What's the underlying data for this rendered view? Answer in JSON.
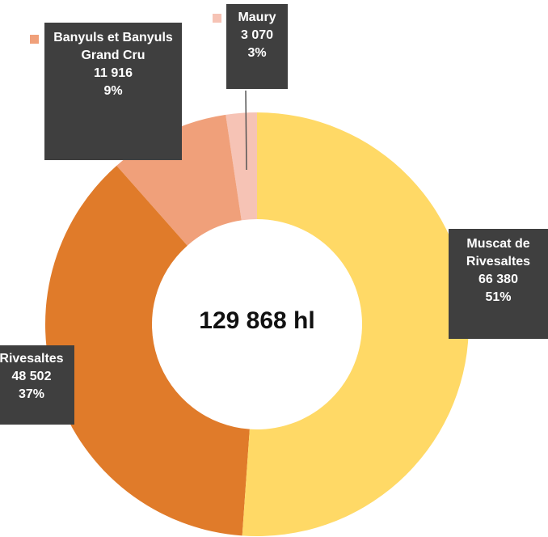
{
  "chart_data": {
    "type": "donut",
    "categories": [
      "Muscat de Rivesaltes",
      "Rivesaltes",
      "Banyuls et Banyuls Grand Cru",
      "Maury"
    ],
    "values": [
      66380,
      48502,
      11916,
      3070
    ],
    "value_labels": [
      "66 380",
      "48 502",
      "11 916",
      "3 070"
    ],
    "percent_labels": [
      "51%",
      "37%",
      "9%",
      "3%"
    ],
    "colors": [
      "#FFD966",
      "#E07B2A",
      "#F0A07A",
      "#F6C3B5"
    ],
    "center_label": "129 868 hl"
  }
}
